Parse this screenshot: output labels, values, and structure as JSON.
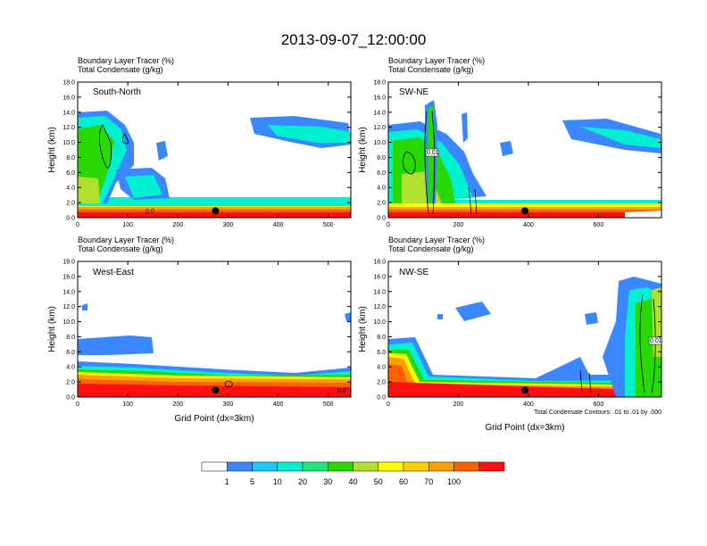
{
  "title": "2013-09-07_12:00:00",
  "colors": {
    "levels": [
      "#ffffff",
      "#3a87ff",
      "#1fc8ff",
      "#00f0d0",
      "#20e878",
      "#28d800",
      "#b0e030",
      "#ffff00",
      "#ffd000",
      "#ffa000",
      "#ff6000",
      "#ff1010"
    ],
    "contour": "#000000",
    "station": "#000000"
  },
  "colorbar": {
    "labels": [
      "1",
      "5",
      "10",
      "20",
      "30",
      "40",
      "50",
      "60",
      "70",
      "100"
    ]
  },
  "note": "Total Condensate Contours: .01 to .01 by .000",
  "chart_data": [
    {
      "type": "heatmap",
      "panel": "South-North",
      "title_line1": "Boundary Layer Tracer   (%)",
      "title_line2": "Total Condensate   (g/kg)",
      "ylabel": "Height (km)",
      "xlabel": "",
      "xlim": [
        0,
        545
      ],
      "ylim": [
        0,
        18
      ],
      "xticks": [
        0,
        100,
        200,
        300,
        400,
        500
      ],
      "yticks": [
        "0.0",
        "2.0",
        "4.0",
        "6.0",
        "8.0",
        "10.0",
        "12.0",
        "14.0",
        "16.0",
        "18.0"
      ],
      "station_x": 275,
      "contour_labels": [
        "0.0"
      ],
      "field": "boundary-layer tracer (%) vs height; deep plume x 0-150, cloud band x 380-545 at 9-12 km"
    },
    {
      "type": "heatmap",
      "panel": "SW-NE",
      "title_line1": "Boundary Layer Tracer   (%)",
      "title_line2": "Total Condensate   (g/kg)",
      "ylabel": "Height (km)",
      "xlabel": "",
      "xlim": [
        0,
        780
      ],
      "ylim": [
        0,
        18
      ],
      "xticks": [
        0,
        200,
        400,
        600
      ],
      "yticks": [
        "0.0",
        "2.0",
        "4.0",
        "6.0",
        "8.0",
        "10.0",
        "12.0",
        "14.0",
        "16.0",
        "18.0"
      ],
      "station_x": 390,
      "contour_labels": [
        "0.01"
      ],
      "field": "deep convective column near x 120 reaching 15 km; upper cloud x 500-780 at 9-13 km"
    },
    {
      "type": "heatmap",
      "panel": "West-East",
      "title_line1": "Boundary Layer Tracer   (%)",
      "title_line2": "Total Condensate   (g/kg)",
      "ylabel": "Height (km)",
      "xlabel": "Grid Point (dx=3km)",
      "xlim": [
        0,
        545
      ],
      "ylim": [
        0,
        18
      ],
      "xticks": [
        0,
        100,
        200,
        300,
        400,
        500
      ],
      "yticks": [
        "0.0",
        "2.0",
        "4.0",
        "6.0",
        "8.0",
        "10.0",
        "12.0",
        "14.0",
        "16.0",
        "18.0"
      ],
      "station_x": 275,
      "contour_labels": [
        "0.0"
      ],
      "field": "shallow boundary layer below 4 km; mid-level cloud x 0-145 at 6-8 km"
    },
    {
      "type": "heatmap",
      "panel": "NW-SE",
      "title_line1": "Boundary Layer Tracer   (%)",
      "title_line2": "Total Condensate   (g/kg)",
      "ylabel": "Height (km)",
      "xlabel": "Grid Point (dx=3km)",
      "xlim": [
        0,
        780
      ],
      "ylim": [
        0,
        18
      ],
      "xticks": [
        0,
        200,
        400,
        600
      ],
      "yticks": [
        "0.0",
        "2.0",
        "4.0",
        "6.0",
        "8.0",
        "10.0",
        "12.0",
        "14.0",
        "16.0",
        "18.0"
      ],
      "station_x": 390,
      "contour_labels": [
        "0.01"
      ],
      "field": "deep convection near x 650-780 reaching 16 km; warm layer x 0-120 up to 6 km"
    }
  ]
}
